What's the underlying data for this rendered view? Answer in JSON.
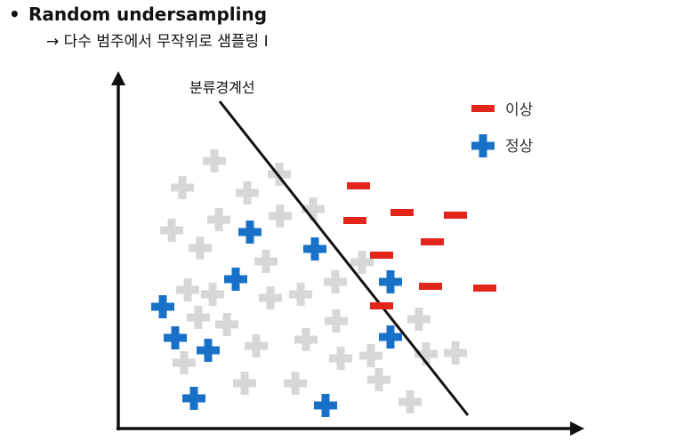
{
  "slide": {
    "bullet_symbol": "•",
    "title": "Random undersampling",
    "subtitle": "→ 다수 범주에서 무작위로 샘플링 I"
  },
  "diagram": {
    "boundary_label": "분류경계선",
    "legend": {
      "anomaly_label": "이상",
      "normal_label": "정상"
    },
    "colors": {
      "axis": "#111111",
      "boundary": "#111111",
      "anomaly": "#e3261b",
      "normal_selected": "#1871c6",
      "normal_removed": "#d7d7d7"
    }
  }
}
